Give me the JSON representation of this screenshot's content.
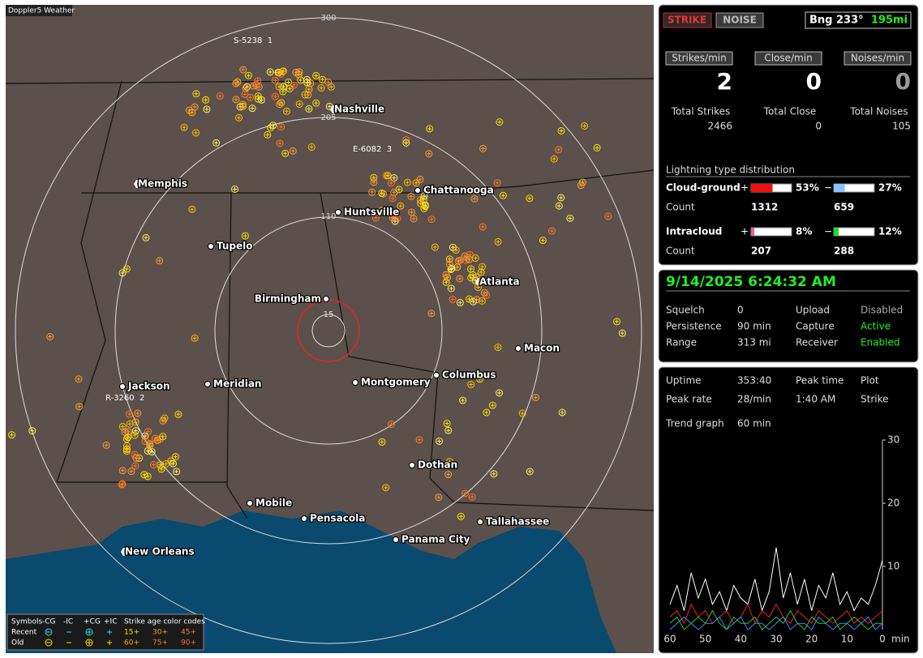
{
  "map": {
    "title": "Doppler5 Weather",
    "range_labels": [
      "300",
      "205",
      "110",
      "15"
    ],
    "cities": [
      "Nashville",
      "Memphis",
      "Chattanooga",
      "Huntsville",
      "Tupelo",
      "Birmingham",
      "Atlanta",
      "Macon",
      "Jackson",
      "Meridian",
      "Montgomery",
      "Columbus",
      "Dothan",
      "Mobile",
      "Pensacola",
      "Tallahassee",
      "Panama City",
      "New Orleans"
    ],
    "station_labels": [
      "S-5238  1",
      "E-6082  3",
      "R-3260  2"
    ],
    "legend": {
      "header": [
        "Symbols",
        "-CG",
        "-IC",
        "+CG",
        "+IC",
        "Strike age color codes"
      ],
      "rows": [
        {
          "label": "Recent",
          "ages": [
            "15+",
            "30+",
            "45+"
          ]
        },
        {
          "label": "Old",
          "ages": [
            "60+",
            "75+",
            "90+"
          ]
        }
      ]
    }
  },
  "status": {
    "modes": [
      "STRIKE",
      "NOISE"
    ],
    "bearing": "Bng 233°",
    "distance": "195mi",
    "rates": [
      {
        "button": "Strikes/min",
        "value": 2,
        "total_label": "Total Strikes",
        "total": 2466
      },
      {
        "button": "Close/min",
        "value": 0,
        "total_label": "Total Close",
        "total": 0
      },
      {
        "button": "Noises/min",
        "value": 0,
        "total_label": "Total Noises",
        "total": 105
      }
    ],
    "distribution": {
      "title": "Lightning type distribution",
      "rows": [
        {
          "label": "Cloud-ground",
          "pos_sign": "+",
          "pos": 53,
          "pos_label": "53%",
          "pos_color": "#ee1111",
          "neg_sign": "−",
          "neg": 27,
          "neg_label": "27%",
          "neg_color": "#88c4ff",
          "count_label": "Count",
          "counts": [
            1312,
            659
          ]
        },
        {
          "label": "Intracloud",
          "pos_sign": "+",
          "pos": 8,
          "pos_label": "8%",
          "pos_color": "#e060a8",
          "neg_sign": "−",
          "neg": 12,
          "neg_label": "12%",
          "neg_color": "#22dd22",
          "count_label": "Count",
          "counts": [
            207,
            288
          ]
        }
      ]
    }
  },
  "system": {
    "datetime": "9/14/2025 6:24:32 AM",
    "left": [
      [
        "Squelch",
        "0"
      ],
      [
        "Persistence",
        "90 min"
      ],
      [
        "Range",
        "313 mi"
      ]
    ],
    "right": [
      [
        "Upload",
        "Disabled"
      ],
      [
        "Capture",
        "Active"
      ],
      [
        "Receiver",
        "Enabled"
      ]
    ],
    "stats": [
      [
        "Uptime",
        "353:40"
      ],
      [
        "Peak time",
        "1:40 AM"
      ],
      [
        "Plot",
        "Strike"
      ],
      [
        "Peak rate",
        "28/min"
      ]
    ],
    "trend": {
      "label": "Trend graph",
      "window": "60 min",
      "ylim": [
        0,
        30
      ],
      "yticks": [
        10,
        20,
        30
      ],
      "xlim": [
        60,
        0
      ],
      "xticks": [
        60,
        50,
        40,
        30,
        20,
        10,
        0
      ],
      "x_unit": "min",
      "x": [
        60,
        58,
        56,
        54,
        52,
        50,
        48,
        46,
        44,
        42,
        40,
        38,
        36,
        34,
        32,
        30,
        28,
        26,
        24,
        22,
        20,
        18,
        16,
        14,
        12,
        10,
        8,
        6,
        4,
        2,
        0
      ],
      "series": [
        {
          "color": "#ffffff",
          "values": [
            4,
            7,
            3,
            9,
            5,
            8,
            4,
            6,
            3,
            7,
            5,
            4,
            8,
            3,
            6,
            13,
            5,
            9,
            4,
            8,
            3,
            7,
            5,
            9,
            4,
            6,
            3,
            5,
            4,
            7,
            11
          ]
        },
        {
          "color": "#ee2222",
          "values": [
            2,
            3,
            1,
            4,
            2,
            3,
            1,
            2,
            3,
            1,
            2,
            4,
            1,
            3,
            2,
            4,
            2,
            1,
            3,
            2,
            1,
            3,
            2,
            1,
            2,
            3,
            1,
            2,
            1,
            2,
            3
          ]
        },
        {
          "color": "#22cc22",
          "values": [
            1,
            2,
            0,
            1,
            2,
            1,
            3,
            1,
            0,
            2,
            1,
            1,
            2,
            0,
            1,
            2,
            1,
            3,
            1,
            0,
            2,
            1,
            1,
            2,
            0,
            1,
            2,
            1,
            0,
            1,
            1
          ]
        },
        {
          "color": "#4488ff",
          "values": [
            0,
            1,
            2,
            1,
            0,
            1,
            1,
            2,
            0,
            1,
            2,
            0,
            1,
            1,
            0,
            1,
            2,
            0,
            1,
            1,
            0,
            2,
            1,
            0,
            1,
            1,
            0,
            1,
            2,
            0,
            1
          ]
        }
      ]
    }
  }
}
